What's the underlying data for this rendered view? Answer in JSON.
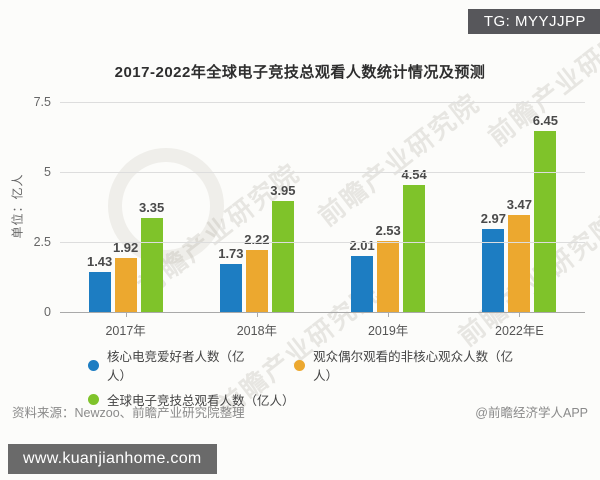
{
  "badge": {
    "text": "TG: MYYJJPP"
  },
  "title": "2017-2022年全球电子竞技总观看人数统计情况及预测",
  "chart_data": {
    "type": "bar",
    "title": "2017-2022年全球电子竞技总观看人数统计情况及预测",
    "categories": [
      "2017年",
      "2018年",
      "2019年",
      "2022年E"
    ],
    "series": [
      {
        "name": "核心电竞爱好者人数（亿人）",
        "color": "#1d7dc2",
        "values": [
          1.43,
          1.73,
          2.01,
          2.97
        ]
      },
      {
        "name": "观众偶尔观看的非核心观众人数（亿人）",
        "color": "#eca82f",
        "values": [
          1.92,
          2.22,
          2.53,
          3.47
        ]
      },
      {
        "name": "全球电子竞技总观看人数（亿人）",
        "color": "#7fc32a",
        "values": [
          3.35,
          3.95,
          4.54,
          6.45
        ]
      }
    ],
    "ylabel": "单位：亿人",
    "yticks": [
      "0",
      "2.5",
      "5",
      "7.5"
    ],
    "ytick_values": [
      0,
      2.5,
      5,
      7.5
    ],
    "ylim": [
      0,
      7.5
    ],
    "grid": true,
    "legend_position": "bottom"
  },
  "watermark": {
    "text": "前瞻产业研究院"
  },
  "footer": {
    "source": "资料来源：Newzoo、前瞻产业研究院整理",
    "credit": "@前瞻经济学人APP",
    "site": "www.kuanjianhome.com"
  }
}
